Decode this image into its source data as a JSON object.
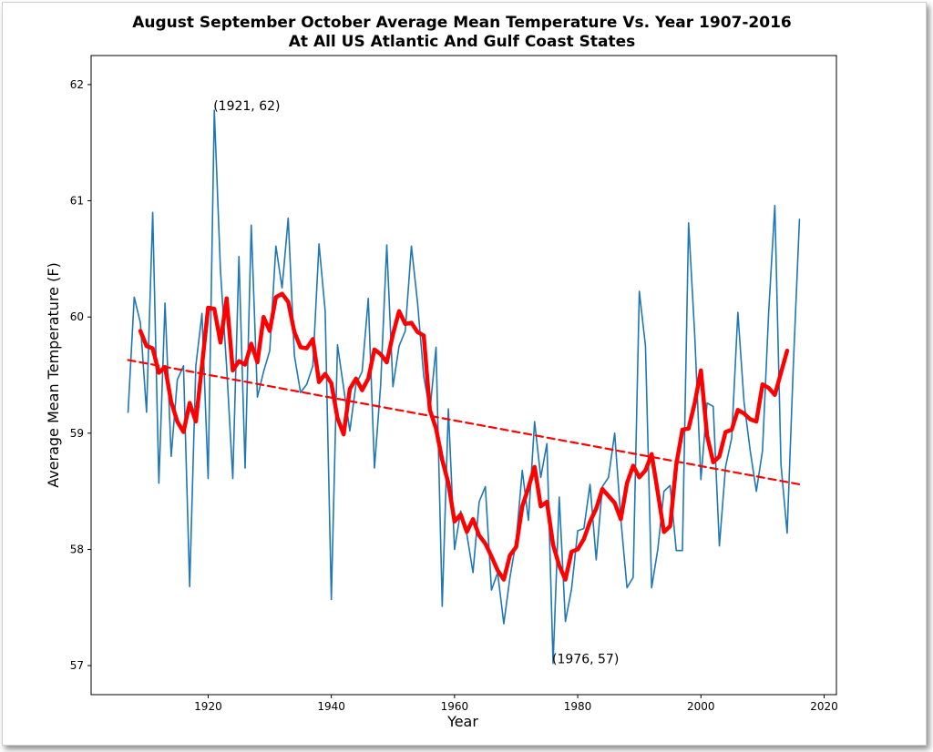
{
  "chart_data": {
    "type": "line",
    "title": "August September October Average Mean Temperature Vs. Year 1907-2016",
    "subtitle": "At All US Atlantic And Gulf Coast States",
    "xlabel": "Year",
    "ylabel": "Average Mean Temperature (F)",
    "xlim": [
      1901,
      2022
    ],
    "ylim": [
      56.75,
      62.25
    ],
    "x_ticks": [
      1920,
      1940,
      1960,
      1980,
      2000,
      2020
    ],
    "y_ticks": [
      57,
      58,
      59,
      60,
      61,
      62
    ],
    "grid": false,
    "annotations": [
      {
        "text": "(1921, 62)",
        "x": 1921,
        "y": 61.78
      },
      {
        "text": "(1976, 57)",
        "x": 1976,
        "y": 57.02
      }
    ],
    "series": [
      {
        "style": "thin-line",
        "color": "#1f77b4",
        "x": [
          1907,
          1908,
          1909,
          1910,
          1911,
          1912,
          1913,
          1914,
          1915,
          1916,
          1917,
          1918,
          1919,
          1920,
          1921,
          1922,
          1923,
          1924,
          1925,
          1926,
          1927,
          1928,
          1929,
          1930,
          1931,
          1932,
          1933,
          1934,
          1935,
          1936,
          1937,
          1938,
          1939,
          1940,
          1941,
          1942,
          1943,
          1944,
          1945,
          1946,
          1947,
          1948,
          1949,
          1950,
          1951,
          1952,
          1953,
          1954,
          1955,
          1956,
          1957,
          1958,
          1959,
          1960,
          1961,
          1962,
          1963,
          1964,
          1965,
          1966,
          1967,
          1968,
          1969,
          1970,
          1971,
          1972,
          1973,
          1974,
          1975,
          1976,
          1977,
          1978,
          1979,
          1980,
          1981,
          1982,
          1983,
          1984,
          1985,
          1986,
          1987,
          1988,
          1989,
          1990,
          1991,
          1992,
          1993,
          1994,
          1995,
          1996,
          1997,
          1998,
          1999,
          2000,
          2001,
          2002,
          2003,
          2004,
          2005,
          2006,
          2007,
          2008,
          2009,
          2010,
          2011,
          2012,
          2013,
          2014,
          2015,
          2016
        ],
        "y": [
          59.18,
          60.17,
          59.95,
          59.18,
          60.9,
          58.57,
          60.12,
          58.8,
          59.46,
          59.58,
          57.68,
          59.58,
          60.03,
          58.61,
          61.78,
          60.4,
          59.57,
          58.61,
          60.52,
          58.7,
          60.79,
          59.31,
          59.53,
          59.71,
          60.61,
          60.25,
          60.85,
          59.67,
          59.35,
          59.42,
          59.58,
          60.63,
          60.05,
          57.57,
          59.76,
          59.39,
          59.02,
          59.42,
          59.53,
          60.16,
          58.7,
          59.41,
          60.62,
          59.4,
          59.75,
          59.88,
          60.61,
          60.12,
          59.49,
          59.19,
          59.74,
          57.51,
          59.21,
          58.0,
          58.33,
          58.13,
          57.8,
          58.41,
          58.54,
          57.65,
          57.8,
          57.36,
          57.76,
          58.07,
          58.68,
          58.25,
          59.1,
          58.62,
          58.91,
          57.02,
          58.45,
          57.38,
          57.66,
          58.16,
          58.18,
          58.56,
          57.91,
          58.54,
          58.62,
          59.0,
          58.26,
          57.67,
          57.76,
          60.22,
          59.75,
          57.67,
          58.0,
          58.5,
          58.55,
          57.99,
          57.99,
          60.81,
          59.84,
          58.6,
          59.26,
          59.23,
          58.03,
          58.71,
          58.96,
          60.04,
          59.27,
          58.85,
          58.5,
          58.85,
          60.04,
          60.96,
          58.73,
          58.14,
          59.58,
          60.84
        ]
      },
      {
        "style": "thick-line",
        "color": "#ff0000",
        "x": [
          1909,
          1910,
          1911,
          1912,
          1913,
          1914,
          1915,
          1916,
          1917,
          1918,
          1919,
          1920,
          1921,
          1922,
          1923,
          1924,
          1925,
          1926,
          1927,
          1928,
          1929,
          1930,
          1931,
          1932,
          1933,
          1934,
          1935,
          1936,
          1937,
          1938,
          1939,
          1940,
          1941,
          1942,
          1943,
          1944,
          1945,
          1946,
          1947,
          1948,
          1949,
          1950,
          1951,
          1952,
          1953,
          1954,
          1955,
          1956,
          1957,
          1958,
          1959,
          1960,
          1961,
          1962,
          1963,
          1964,
          1965,
          1966,
          1967,
          1968,
          1969,
          1970,
          1971,
          1972,
          1973,
          1974,
          1975,
          1976,
          1977,
          1978,
          1979,
          1980,
          1981,
          1982,
          1983,
          1984,
          1985,
          1986,
          1987,
          1988,
          1989,
          1990,
          1991,
          1992,
          1993,
          1994,
          1995,
          1996,
          1997,
          1998,
          1999,
          2000,
          2001,
          2002,
          2003,
          2004,
          2005,
          2006,
          2007,
          2008,
          2009,
          2010,
          2011,
          2012,
          2013,
          2014
        ],
        "y": [
          59.88,
          59.75,
          59.73,
          59.52,
          59.57,
          59.27,
          59.1,
          59.01,
          59.26,
          59.1,
          59.58,
          60.08,
          60.07,
          59.78,
          60.16,
          59.54,
          59.62,
          59.59,
          59.77,
          59.61,
          60.0,
          59.88,
          60.17,
          60.2,
          60.13,
          59.87,
          59.74,
          59.73,
          59.81,
          59.44,
          59.51,
          59.43,
          59.13,
          58.99,
          59.38,
          59.47,
          59.37,
          59.47,
          59.72,
          59.68,
          59.61,
          59.85,
          60.05,
          59.94,
          59.95,
          59.87,
          59.84,
          59.2,
          59.04,
          58.77,
          58.57,
          58.24,
          58.3,
          58.15,
          58.26,
          58.12,
          58.05,
          57.94,
          57.82,
          57.74,
          57.95,
          58.02,
          58.37,
          58.53,
          58.71,
          58.37,
          58.41,
          58.04,
          57.86,
          57.74,
          57.98,
          58.0,
          58.09,
          58.24,
          58.35,
          58.52,
          58.46,
          58.4,
          58.26,
          58.57,
          58.72,
          58.62,
          58.68,
          58.82,
          58.49,
          58.15,
          58.2,
          58.73,
          59.03,
          59.04,
          59.26,
          59.54,
          58.98,
          58.75,
          58.8,
          59.01,
          59.03,
          59.2,
          59.17,
          59.12,
          59.1,
          59.42,
          59.39,
          59.33,
          59.52,
          59.71
        ]
      },
      {
        "style": "dashed-trend",
        "color": "#ff0000",
        "x": [
          1907,
          2016
        ],
        "y": [
          59.63,
          58.56
        ]
      }
    ]
  }
}
